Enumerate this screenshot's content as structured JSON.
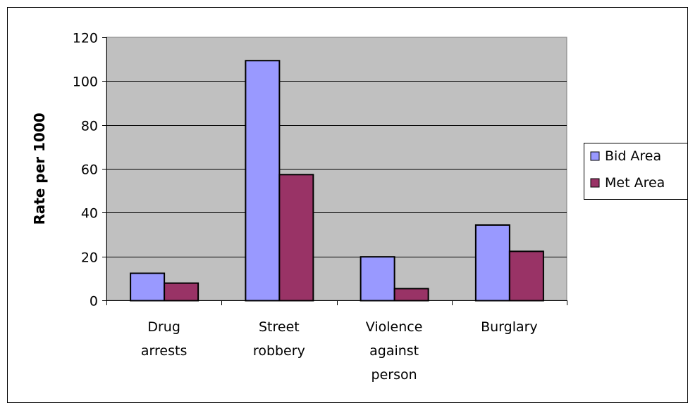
{
  "chart_data": {
    "type": "bar",
    "categories": [
      [
        "Drug",
        "arrests"
      ],
      [
        "Street",
        "robbery"
      ],
      [
        "Violence",
        "against",
        "person"
      ],
      [
        "Burglary"
      ]
    ],
    "series": [
      {
        "name": "Bid Area",
        "color": "#9999ff",
        "values": [
          12.5,
          109.5,
          20,
          34.5
        ]
      },
      {
        "name": "Met Area",
        "color": "#993366",
        "values": [
          8,
          57.5,
          5.5,
          22.5
        ]
      }
    ],
    "ylabel": "Rate per 1000",
    "ylim": [
      0,
      120
    ],
    "yticks": [
      0,
      20,
      40,
      60,
      80,
      100,
      120
    ],
    "grid": true,
    "plot_background": "#c0c0c0",
    "legend": "right"
  }
}
